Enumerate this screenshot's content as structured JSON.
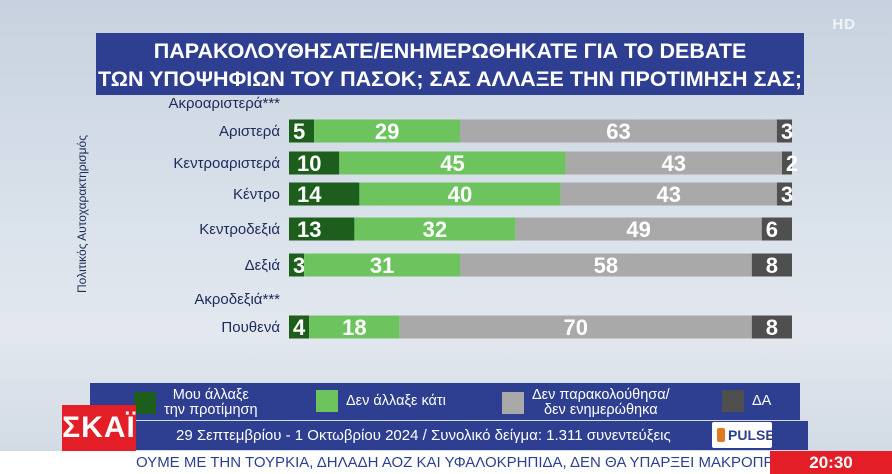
{
  "corner_badge": "HD",
  "title_line1": "ΠΑΡΑΚΟΛΟΥΘΗΣΑΤΕ/ΕΝΗΜΕΡΩΘΗΚΑΤΕ ΓΙΑ ΤΟ DEBATE",
  "title_line2": "ΤΩΝ ΥΠΟΨΗΦΙΩΝ ΤΟΥ ΠΑΣΟΚ; ΣΑΣ ΑΛΛΑΞΕ ΤΗΝ ΠΡΟΤΙΜΗΣΗ ΣΑΣ;",
  "colors": {
    "changed": "#1e5e1c",
    "not_changed": "#6dc45f",
    "not_followed": "#a9a9a9",
    "da": "#4f4f4f",
    "brand_blue": "#2e3f92",
    "brand_red": "#e41e26"
  },
  "chart_data": {
    "type": "bar",
    "orientation": "horizontal",
    "stacked": true,
    "ylabel": "Πολιτικός Αυτοχαρακτηρισμός",
    "categories": [
      "Ακροαριστερά***",
      "Αριστερά",
      "Κεντροαριστερά",
      "Κέντρο",
      "Κεντροδεξιά",
      "Δεξιά",
      "Ακροδεξιά***",
      "Πουθενά"
    ],
    "series": [
      {
        "name": "Μου άλλαξε την προτίμηση",
        "values": [
          null,
          5,
          10,
          14,
          13,
          3,
          null,
          4
        ]
      },
      {
        "name": "Δεν άλλαξε κάτι",
        "values": [
          null,
          29,
          45,
          40,
          32,
          31,
          null,
          18
        ]
      },
      {
        "name": "Δεν παρακολούθησα/ δεν ενημερώθηκα",
        "values": [
          null,
          63,
          43,
          43,
          49,
          58,
          null,
          70
        ]
      },
      {
        "name": "ΔΑ",
        "values": [
          null,
          3,
          2,
          3,
          6,
          8,
          null,
          8
        ]
      }
    ]
  },
  "legend": {
    "item1_line1": "Μου άλλαξε",
    "item1_line2": "την προτίμηση",
    "item2": "Δεν άλλαξε κάτι",
    "item3_line1": "Δεν παρακολούθησα/",
    "item3_line2": "δεν ενημερώθηκα",
    "item4": "ΔΑ"
  },
  "info_text": "29 Σεπτεμβρίου - 1 Οκτωβρίου 2024 / Συνολικό δείγμα: 1.311 συνεντεύξεις",
  "pollster_logo": "PULSE",
  "channel_logo": "ΣΚΑΪ",
  "ticker_text": "ΟΥΜΕ ΜΕ ΤΗΝ ΤΟΥΡΚΙΑ, ΔΗΛΑΔΗ ΑΟΖ ΚΑΙ ΥΦΑΛΟΚΡΗΠΙΔΑ, ΔΕΝ ΘΑ ΥΠΑΡΞΕΙ ΜΑΚΡΟΠΡΟΘΕΣΜΑ",
  "clock": "20:30"
}
